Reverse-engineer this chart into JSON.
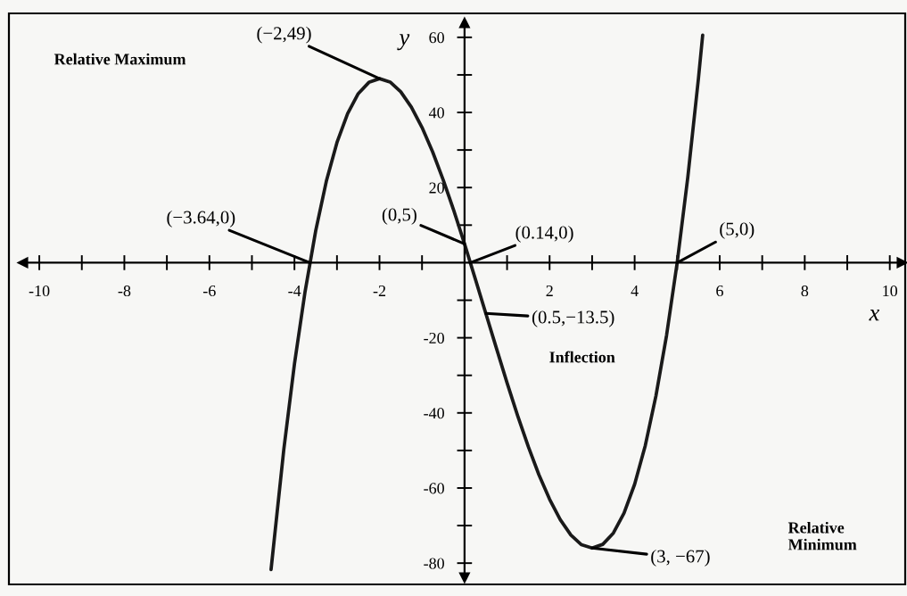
{
  "chart_data": {
    "type": "line",
    "xlabel": "x",
    "ylabel": "y",
    "x": [
      -4.55,
      -4.25,
      -4.0,
      -3.75,
      -3.5,
      -3.25,
      -3.0,
      -2.75,
      -2.5,
      -2.25,
      -2.0,
      -1.75,
      -1.5,
      -1.25,
      -1.0,
      -0.75,
      -0.5,
      -0.25,
      0,
      0.25,
      0.5,
      0.75,
      1.0,
      1.25,
      1.5,
      1.75,
      2.0,
      2.25,
      2.5,
      2.75,
      3.0,
      3.25,
      3.5,
      3.75,
      4.0,
      4.25,
      4.5,
      4.75,
      5.0,
      5.25,
      5.5,
      5.6
    ],
    "series": [
      {
        "color": "#1a1a1a",
        "values": [
          -81.7,
          -49.7,
          -27,
          -7.7,
          8.5,
          21.7,
          32,
          39.7,
          45,
          48.0,
          49,
          48.1,
          45.5,
          41.4,
          36,
          29.5,
          22,
          13.8,
          5,
          -4.2,
          -13.5,
          -22.8,
          -32,
          -40.8,
          -49,
          -56.5,
          -63,
          -68.4,
          -72.5,
          -75.1,
          -76,
          -75.0,
          -72,
          -66.7,
          -59,
          -48.7,
          -35.5,
          -19.4,
          0,
          22.7,
          49.0,
          60.6
        ]
      }
    ],
    "line_style": "solid",
    "xlim": [
      -10.4,
      10.3
    ],
    "ylim": [
      -84,
      64
    ],
    "xticks": [
      -10,
      {
        "value": -9,
        "label": null
      },
      -8,
      {
        "value": -7,
        "label": null
      },
      -6,
      {
        "value": -5,
        "label": null
      },
      -4,
      {
        "value": -3,
        "label": null
      },
      -2,
      {
        "value": -1,
        "label": null
      },
      {
        "value": 1,
        "label": null
      },
      2,
      {
        "value": 3,
        "label": null
      },
      4,
      {
        "value": 5,
        "label": null
      },
      6,
      {
        "value": 7,
        "label": null
      },
      8,
      {
        "value": 9,
        "label": null
      },
      10
    ],
    "yticks": [
      60,
      {
        "value": 50,
        "label": null
      },
      40,
      {
        "value": 30,
        "label": null
      },
      20,
      {
        "value": 10,
        "label": null
      },
      {
        "value": -10,
        "label": null
      },
      -20,
      {
        "value": -30,
        "label": null
      },
      -40,
      {
        "value": -50,
        "label": null
      },
      -60,
      {
        "value": -70,
        "label": null
      },
      -80
    ],
    "annotations": [
      "Relative Maximum",
      {
        "text": "(−2,49)",
        "x": -2,
        "y": 49
      },
      {
        "text": "(−3.64,0)",
        "x": -3.64,
        "y": 0
      },
      {
        "text": "(0,5)",
        "x": 0,
        "y": 5
      },
      {
        "text": "(0.14,0)",
        "x": 0.14,
        "y": 0
      },
      {
        "text": "(5,0)",
        "x": 5,
        "y": 0
      },
      {
        "text": "(0.5,−13.5)",
        "x": 0.5,
        "y": -13.5
      },
      "Inflection",
      "Relative\nMinimum",
      {
        "text": "(3, −67)",
        "x": 3,
        "y": -76
      }
    ]
  }
}
